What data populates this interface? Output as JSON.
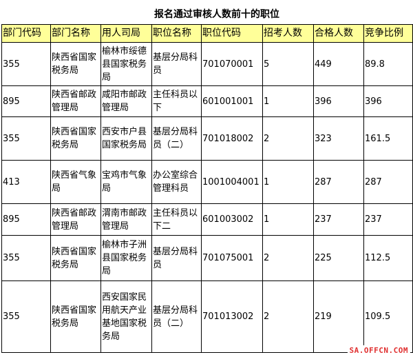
{
  "title": "报名通过审核人数前十的职位",
  "headers": [
    "部门代码",
    "部门名称",
    "用人司局",
    "职位名称",
    "职位代码",
    "招考人数",
    "合格人数",
    "竞争比例"
  ],
  "rows": [
    [
      "355",
      "陕西省国家税务局",
      "榆林市绥德县国家税务局",
      "基层分局科员",
      "701070001",
      "5",
      "449",
      "89.8"
    ],
    [
      "895",
      "陕西省邮政管理局",
      "咸阳市邮政管理局",
      "主任科员以下",
      "601001001",
      "1",
      "396",
      "396"
    ],
    [
      "355",
      "陕西省国家税务局",
      "西安市户县国家税务局",
      "基层分局科员（二）",
      "701018002",
      "2",
      "323",
      "161.5"
    ],
    [
      "413",
      "陕西省气象局",
      "宝鸡市气象局",
      "办公室综合管理科员",
      "1001004001",
      "1",
      "287",
      "287"
    ],
    [
      "895",
      "陕西省邮政管理局",
      "渭南市邮政管理局",
      "主任科员以下二",
      "601003002",
      "1",
      "237",
      "237"
    ],
    [
      "355",
      "陕西省国家税务局",
      "榆林市子洲县国家税务局",
      "基层分局科员",
      "701075001",
      "2",
      "225",
      "112.5"
    ],
    [
      "355",
      "陕西省国家税务局",
      "西安国家民用航天产业基地国家税务局",
      "基层分局科员（二）",
      "701013002",
      "2",
      "219",
      "109.5"
    ]
  ],
  "watermark": "SA.OFFCN.COM",
  "colors": {
    "header_bg": "#ffff99",
    "watermark": "#e03030"
  }
}
